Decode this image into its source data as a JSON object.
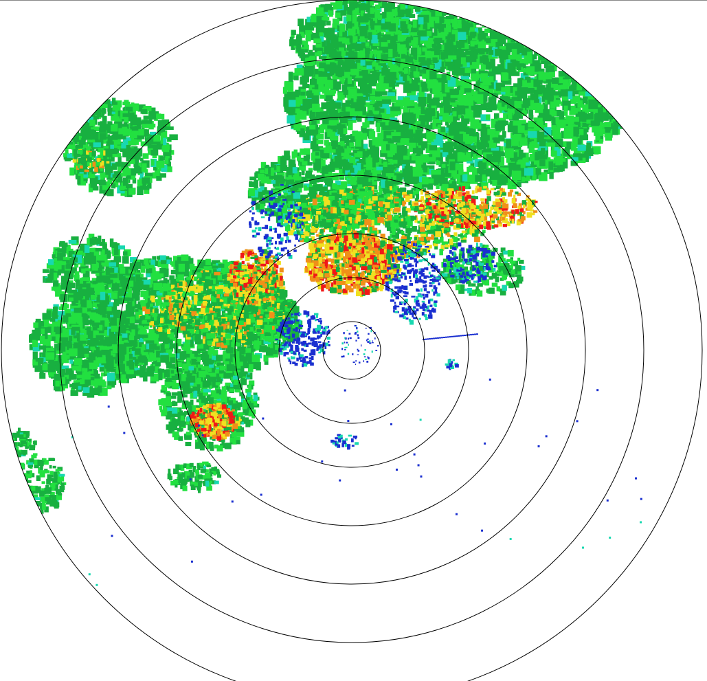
{
  "display": {
    "type": "radar-ppi",
    "range_rings": 7,
    "ring_color": "#000000",
    "background": "#ffffff"
  },
  "reflectivity_palette": {
    "weak_blue": "#1a2fd0",
    "cyan": "#18d8b0",
    "light_green": "#22e040",
    "green": "#18b040",
    "yellow": "#f0e020",
    "orange": "#f09018",
    "red": "#f01818"
  }
}
